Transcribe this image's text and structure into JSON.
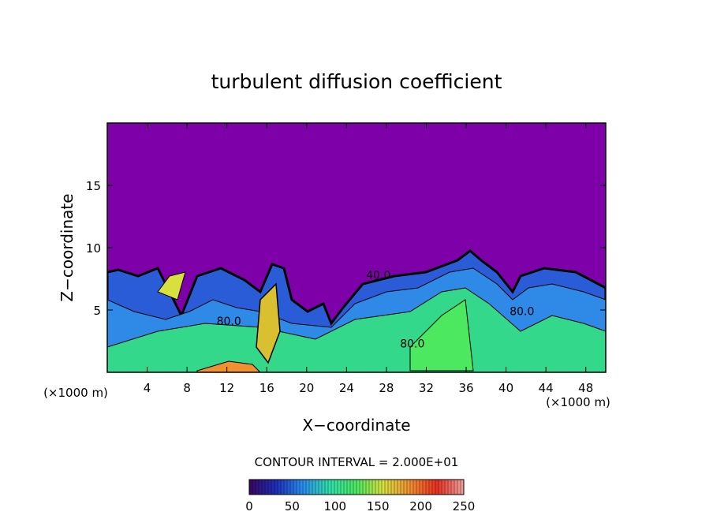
{
  "chart_data": {
    "type": "contour",
    "title": "turbulent diffusion coefficient",
    "x_label": "X−coordinate",
    "y_label": "Z−coordinate",
    "x_unit_left": "(×1000 m)",
    "x_unit_right": "(×1000 m)",
    "xlim": [
      0,
      50
    ],
    "xticks": [
      4,
      8,
      12,
      16,
      20,
      24,
      28,
      32,
      36,
      40,
      44,
      48
    ],
    "ylim": [
      0,
      20
    ],
    "yticks": [
      5,
      10,
      15
    ],
    "background_color": "#7e00a8",
    "contour_interval_label": "CONTOUR INTERVAL = 2.000E+01",
    "contour_labels": [
      {
        "text": "80.0",
        "x": 12.2,
        "y": 3.8
      },
      {
        "text": "80.0",
        "x": 30.6,
        "y": 2.0
      },
      {
        "text": "40.0",
        "x": 27.2,
        "y": 7.5
      },
      {
        "text": "80.0",
        "x": 41.6,
        "y": 4.6
      }
    ],
    "colorbar": {
      "range": [
        0,
        250
      ],
      "ticks": [
        0,
        50,
        100,
        150,
        200,
        250
      ],
      "colors": [
        "#3a0660",
        "#1c2fb8",
        "#2a8ef0",
        "#30e0a8",
        "#4ce860",
        "#d8e040",
        "#f09030",
        "#e83020",
        "#f0a0a0"
      ]
    }
  }
}
